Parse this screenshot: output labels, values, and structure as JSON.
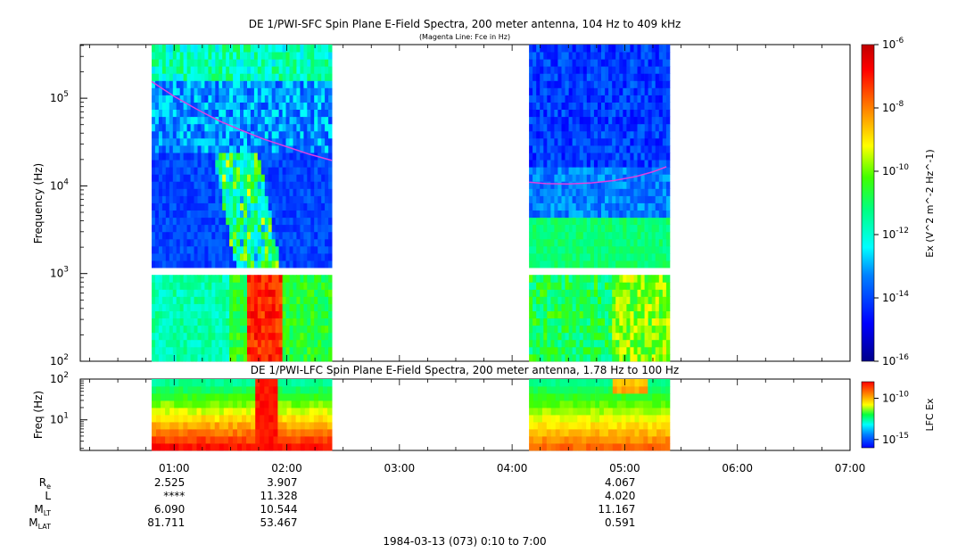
{
  "chart_data": [
    {
      "type": "heatmap",
      "title": "DE 1/PWI-SFC  Spin Plane E-Field Spectra, 200 meter antenna, 104 Hz to 409 kHz",
      "subtitle": "(Magenta Line: Fce in Hz)",
      "ylabel": "Frequency (Hz)",
      "yscale": "log",
      "ylim": [
        100,
        409000
      ],
      "y_ticks": [
        "10^2",
        "10^3",
        "10^4",
        "10^5"
      ],
      "colorbar": {
        "label": "Ex (V^2 m^-2 Hz^-1)",
        "scale": "log",
        "range": [
          1e-16,
          1e-06
        ],
        "ticks": [
          "10^-16",
          "10^-14",
          "10^-12",
          "10^-10",
          "10^-8",
          "10^-6"
        ]
      },
      "data_intervals_hours": [
        [
          0.8,
          2.4
        ],
        [
          4.15,
          5.4
        ]
      ],
      "fce_line": {
        "name": "Fce",
        "color": "#e040e0",
        "segments": [
          {
            "x": [
              0.8,
              1.0,
              1.2,
              1.4,
              1.6,
              1.8,
              2.0,
              2.2,
              2.4
            ],
            "y": [
              155000,
              105000,
              75000,
              55000,
              43000,
              34000,
              28000,
              23000,
              19500
            ]
          },
          {
            "x": [
              4.15,
              4.3,
              4.5,
              4.7,
              4.9,
              5.1,
              5.25,
              5.37
            ],
            "y": [
              11000,
              10600,
              10500,
              10800,
              11500,
              12800,
              14500,
              16500
            ]
          }
        ]
      }
    },
    {
      "type": "heatmap",
      "title": "DE 1/PWI-LFC  Spin Plane E-Field Spectra, 200 meter antenna, 1.78 Hz to 100 Hz",
      "ylabel": "Freq (Hz)",
      "yscale": "log",
      "ylim": [
        1.78,
        100
      ],
      "y_ticks": [
        "10^1",
        "10^2"
      ],
      "colorbar": {
        "label": "LFC Ex",
        "scale": "log",
        "range": [
          1e-16,
          1e-08
        ],
        "ticks": [
          "10^-15",
          "10^-10"
        ]
      },
      "data_intervals_hours": [
        [
          0.8,
          2.4
        ],
        [
          4.15,
          5.4
        ]
      ]
    }
  ],
  "x_axis": {
    "range_hours": [
      0.1667,
      7.0
    ],
    "tick_labels": [
      "01:00",
      "02:00",
      "03:00",
      "04:00",
      "05:00",
      "06:00",
      "07:00"
    ],
    "tick_hours": [
      1,
      2,
      3,
      4,
      5,
      6,
      7
    ],
    "footer": "1984-03-13 (073) 0:10 to 7:00"
  },
  "ephemeris": {
    "labels": [
      "R",
      "L",
      "M",
      "M"
    ],
    "label_subs": [
      "e",
      "",
      "LT",
      "LAT"
    ],
    "columns": [
      {
        "hour": 1.0,
        "values": [
          "2.525",
          "****",
          "6.090",
          "81.711"
        ]
      },
      {
        "hour": 2.0,
        "values": [
          "3.907",
          "11.328",
          "10.544",
          "53.467"
        ]
      },
      {
        "hour": 5.0,
        "values": [
          "4.067",
          "4.020",
          "11.167",
          "0.591"
        ]
      }
    ]
  }
}
